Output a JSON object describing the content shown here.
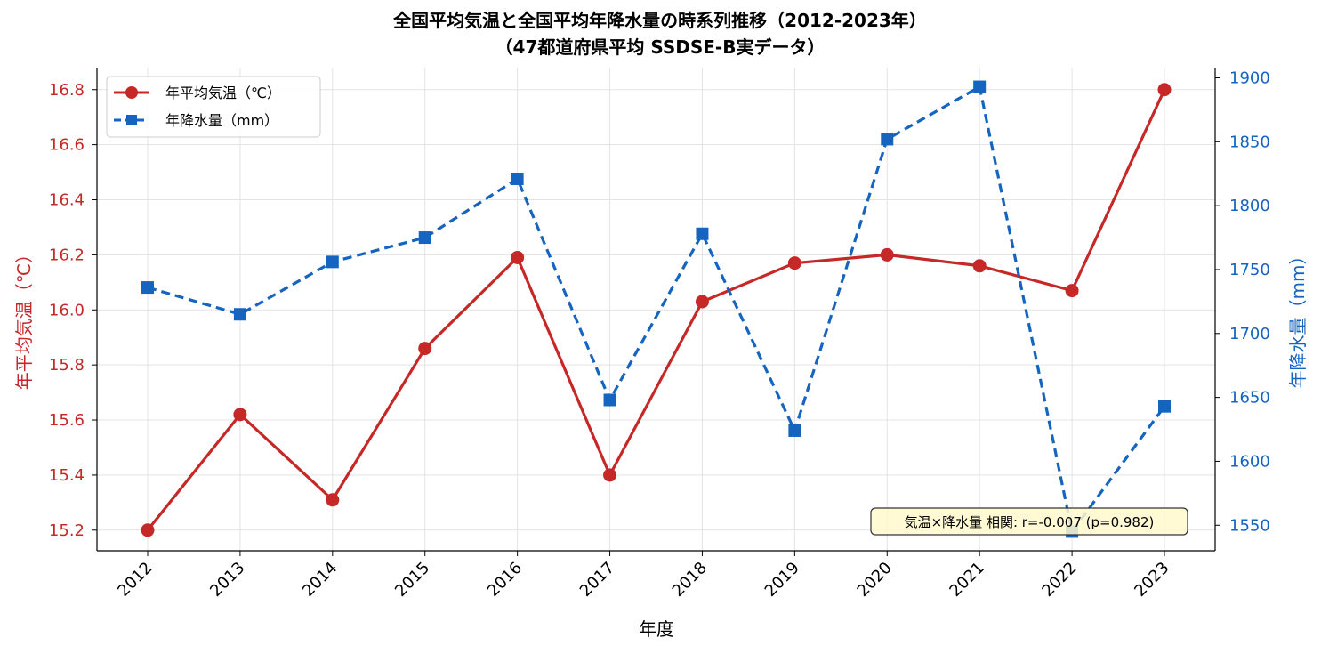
{
  "chart_data": {
    "type": "line",
    "title": "全国平均気温と全国平均年降水量の時系列推移（2012-2023年）",
    "subtitle": "（47都道府県平均 SSDSE-B実データ）",
    "xlabel": "年度",
    "ylabel_left": "年平均気温（℃）",
    "ylabel_right": "年降水量（mm）",
    "x": [
      "2012",
      "2013",
      "2014",
      "2015",
      "2016",
      "2017",
      "2018",
      "2019",
      "2020",
      "2021",
      "2022",
      "2023"
    ],
    "ylim_left": [
      15.125,
      16.88
    ],
    "ylim_right": [
      1530,
      1908
    ],
    "yticks_left": [
      "15.2",
      "15.4",
      "15.6",
      "15.8",
      "16.0",
      "16.2",
      "16.4",
      "16.6",
      "16.8"
    ],
    "yticks_right": [
      "1550",
      "1600",
      "1650",
      "1700",
      "1750",
      "1800",
      "1850",
      "1900"
    ],
    "grid": true,
    "legend_position": "top-left",
    "series": [
      {
        "name": "年平均気温（℃）",
        "axis": "left",
        "color": "#c62828",
        "line_style": "solid",
        "marker": "circle",
        "values": [
          15.2,
          15.62,
          15.31,
          15.86,
          16.19,
          15.4,
          16.03,
          16.17,
          16.2,
          16.16,
          16.07,
          16.8
        ]
      },
      {
        "name": "年降水量（mm）",
        "axis": "right",
        "color": "#1565c0",
        "line_style": "dashed",
        "marker": "square",
        "values": [
          1736,
          1715,
          1756,
          1775,
          1821,
          1648,
          1778,
          1624,
          1852,
          1893,
          1545,
          1643
        ]
      }
    ],
    "annotation": "気温×降水量 相関: r=-0.007 (p=0.982)"
  }
}
